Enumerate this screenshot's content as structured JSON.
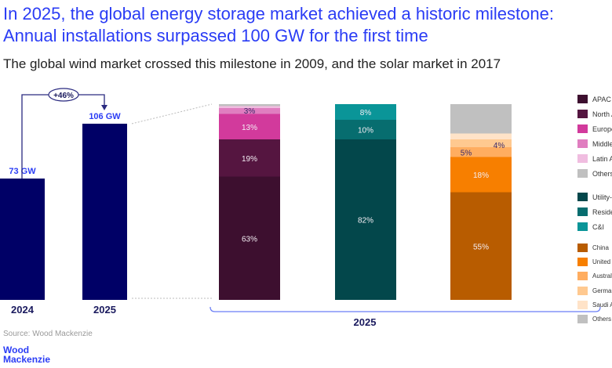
{
  "title_line1": "In 2025, the global energy storage market achieved a historic milestone:",
  "title_line2": "Annual installations surpassed 100 GW for the first time",
  "subtitle": "The global wind market crossed this milestone in 2009, and the solar market in 2017",
  "source": "Source: Wood Mackenzie",
  "logo": "Wood\nMackenzie",
  "colors": {
    "navy": "#000066",
    "title": "#2a3cf5"
  },
  "chart_data": [
    {
      "type": "bar",
      "categories": [
        "2024",
        "2025"
      ],
      "values": [
        73,
        106
      ],
      "data_labels": [
        "73 GW",
        "106 GW"
      ],
      "unit": "GW",
      "growth_annotation": "+46%"
    },
    {
      "type": "stacked-bar-100",
      "group_label": "2025",
      "stacks": [
        {
          "segments": [
            {
              "name": "APAC",
              "value": 63,
              "label": "63%",
              "color": "#3d0f2f"
            },
            {
              "name": "North America",
              "value": 19,
              "label": "19%",
              "color": "#551540"
            },
            {
              "name": "Europe",
              "value": 13,
              "label": "13%",
              "color": "#d23a9c"
            },
            {
              "name": "Middle East & Africa",
              "value": 3,
              "label": "3%",
              "color": "#e07ec0"
            },
            {
              "name": "Latin America",
              "value": 1,
              "label": "",
              "color": "#f0bde0"
            },
            {
              "name": "Others",
              "value": 1,
              "label": "",
              "color": "#c0c0c0"
            }
          ]
        },
        {
          "segments": [
            {
              "name": "Utility-scale",
              "value": 82,
              "label": "82%",
              "color": "#03474b"
            },
            {
              "name": "Residential",
              "value": 10,
              "label": "10%",
              "color": "#076d6f"
            },
            {
              "name": "C&I",
              "value": 8,
              "label": "8%",
              "color": "#0a9598"
            }
          ]
        },
        {
          "segments": [
            {
              "name": "China",
              "value": 55,
              "label": "55%",
              "color": "#b85c00"
            },
            {
              "name": "United States",
              "value": 18,
              "label": "18%",
              "color": "#f77f00"
            },
            {
              "name": "Australia",
              "value": 5,
              "label": "5%",
              "color": "#ffad60"
            },
            {
              "name": "Germany",
              "value": 4,
              "label": "4%",
              "color": "#ffc990"
            },
            {
              "name": "Saudi Arabia",
              "value": 3,
              "label": "3%",
              "color": "#ffe3c8"
            },
            {
              "name": "Others",
              "value": 15,
              "label": "",
              "color": "#c0c0c0"
            }
          ]
        }
      ]
    }
  ]
}
